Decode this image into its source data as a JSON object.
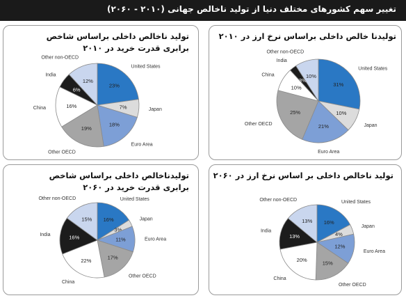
{
  "header": {
    "title": "تغییر سهم کشورهای مختلف دنیا از تولید ناخالص جهانی (۲۰۱۰ - ۲۰۶۰)"
  },
  "colors": {
    "United States": "#2a78c4",
    "Japan": "#dcdcdc",
    "Euro Area": "#7d9fd6",
    "Other OECD": "#a5a5a5",
    "China": "#ffffff",
    "India": "#1c1c1c",
    "Other non-OECD": "#c9d6ee"
  },
  "chart_data": [
    {
      "type": "pie",
      "title_line1": "تولیدنا خالص داخلی براساس نرخ ارز در ۲۰۱۰",
      "title_line2": "",
      "slices": [
        {
          "label": "United States",
          "value": 31,
          "display": "31%"
        },
        {
          "label": "Japan",
          "value": 10,
          "display": "10%"
        },
        {
          "label": "Euro Area",
          "value": 21,
          "display": "21%"
        },
        {
          "label": "Other OECD",
          "value": 25,
          "display": "25%"
        },
        {
          "label": "China",
          "value": 10,
          "display": "10%"
        },
        {
          "label": "India",
          "value": 3,
          "display": "3%"
        },
        {
          "label": "Other non-OECD",
          "value": 10,
          "display": "10%"
        }
      ]
    },
    {
      "type": "pie",
      "title_line1": "تولید ناخالص داخلی براساس شاخص",
      "title_line2": "برابری قدرت خرید در ۲۰۱۰",
      "slices": [
        {
          "label": "United States",
          "value": 23,
          "display": "23%"
        },
        {
          "label": "Japan",
          "value": 7,
          "display": "7%"
        },
        {
          "label": "Euro Area",
          "value": 18,
          "display": "18%"
        },
        {
          "label": "Other OECD",
          "value": 19,
          "display": "19%"
        },
        {
          "label": "China",
          "value": 16,
          "display": "16%"
        },
        {
          "label": "India",
          "value": 6,
          "display": "6%"
        },
        {
          "label": "Other non-OECD",
          "value": 12,
          "display": "12%"
        }
      ]
    },
    {
      "type": "pie",
      "title_line1": "تولید ناخالص داخلی بر اساس نرخ ارز در ۲۰۶۰",
      "title_line2": "",
      "slices": [
        {
          "label": "United States",
          "value": 16,
          "display": "16%"
        },
        {
          "label": "Japan",
          "value": 4,
          "display": "4%"
        },
        {
          "label": "Euro Area",
          "value": 12,
          "display": "12%"
        },
        {
          "label": "Other OECD",
          "value": 15,
          "display": "15%"
        },
        {
          "label": "China",
          "value": 20,
          "display": "20%"
        },
        {
          "label": "India",
          "value": 13,
          "display": "13%"
        },
        {
          "label": "Other non-OECD",
          "value": 13,
          "display": "13%"
        }
      ]
    },
    {
      "type": "pie",
      "title_line1": "تولیدناخالص داخلی براساس شاخص",
      "title_line2": "برابری قدرت خرید در ۲۰۶۰",
      "slices": [
        {
          "label": "United States",
          "value": 16,
          "display": "16%"
        },
        {
          "label": "Japan",
          "value": 3,
          "display": "3%"
        },
        {
          "label": "Euro Area",
          "value": 11,
          "display": "11%"
        },
        {
          "label": "Other OECD",
          "value": 17,
          "display": "17%"
        },
        {
          "label": "China",
          "value": 22,
          "display": "22%"
        },
        {
          "label": "India",
          "value": 16,
          "display": "16%"
        },
        {
          "label": "Other non-OECD",
          "value": 15,
          "display": "15%"
        }
      ]
    }
  ]
}
